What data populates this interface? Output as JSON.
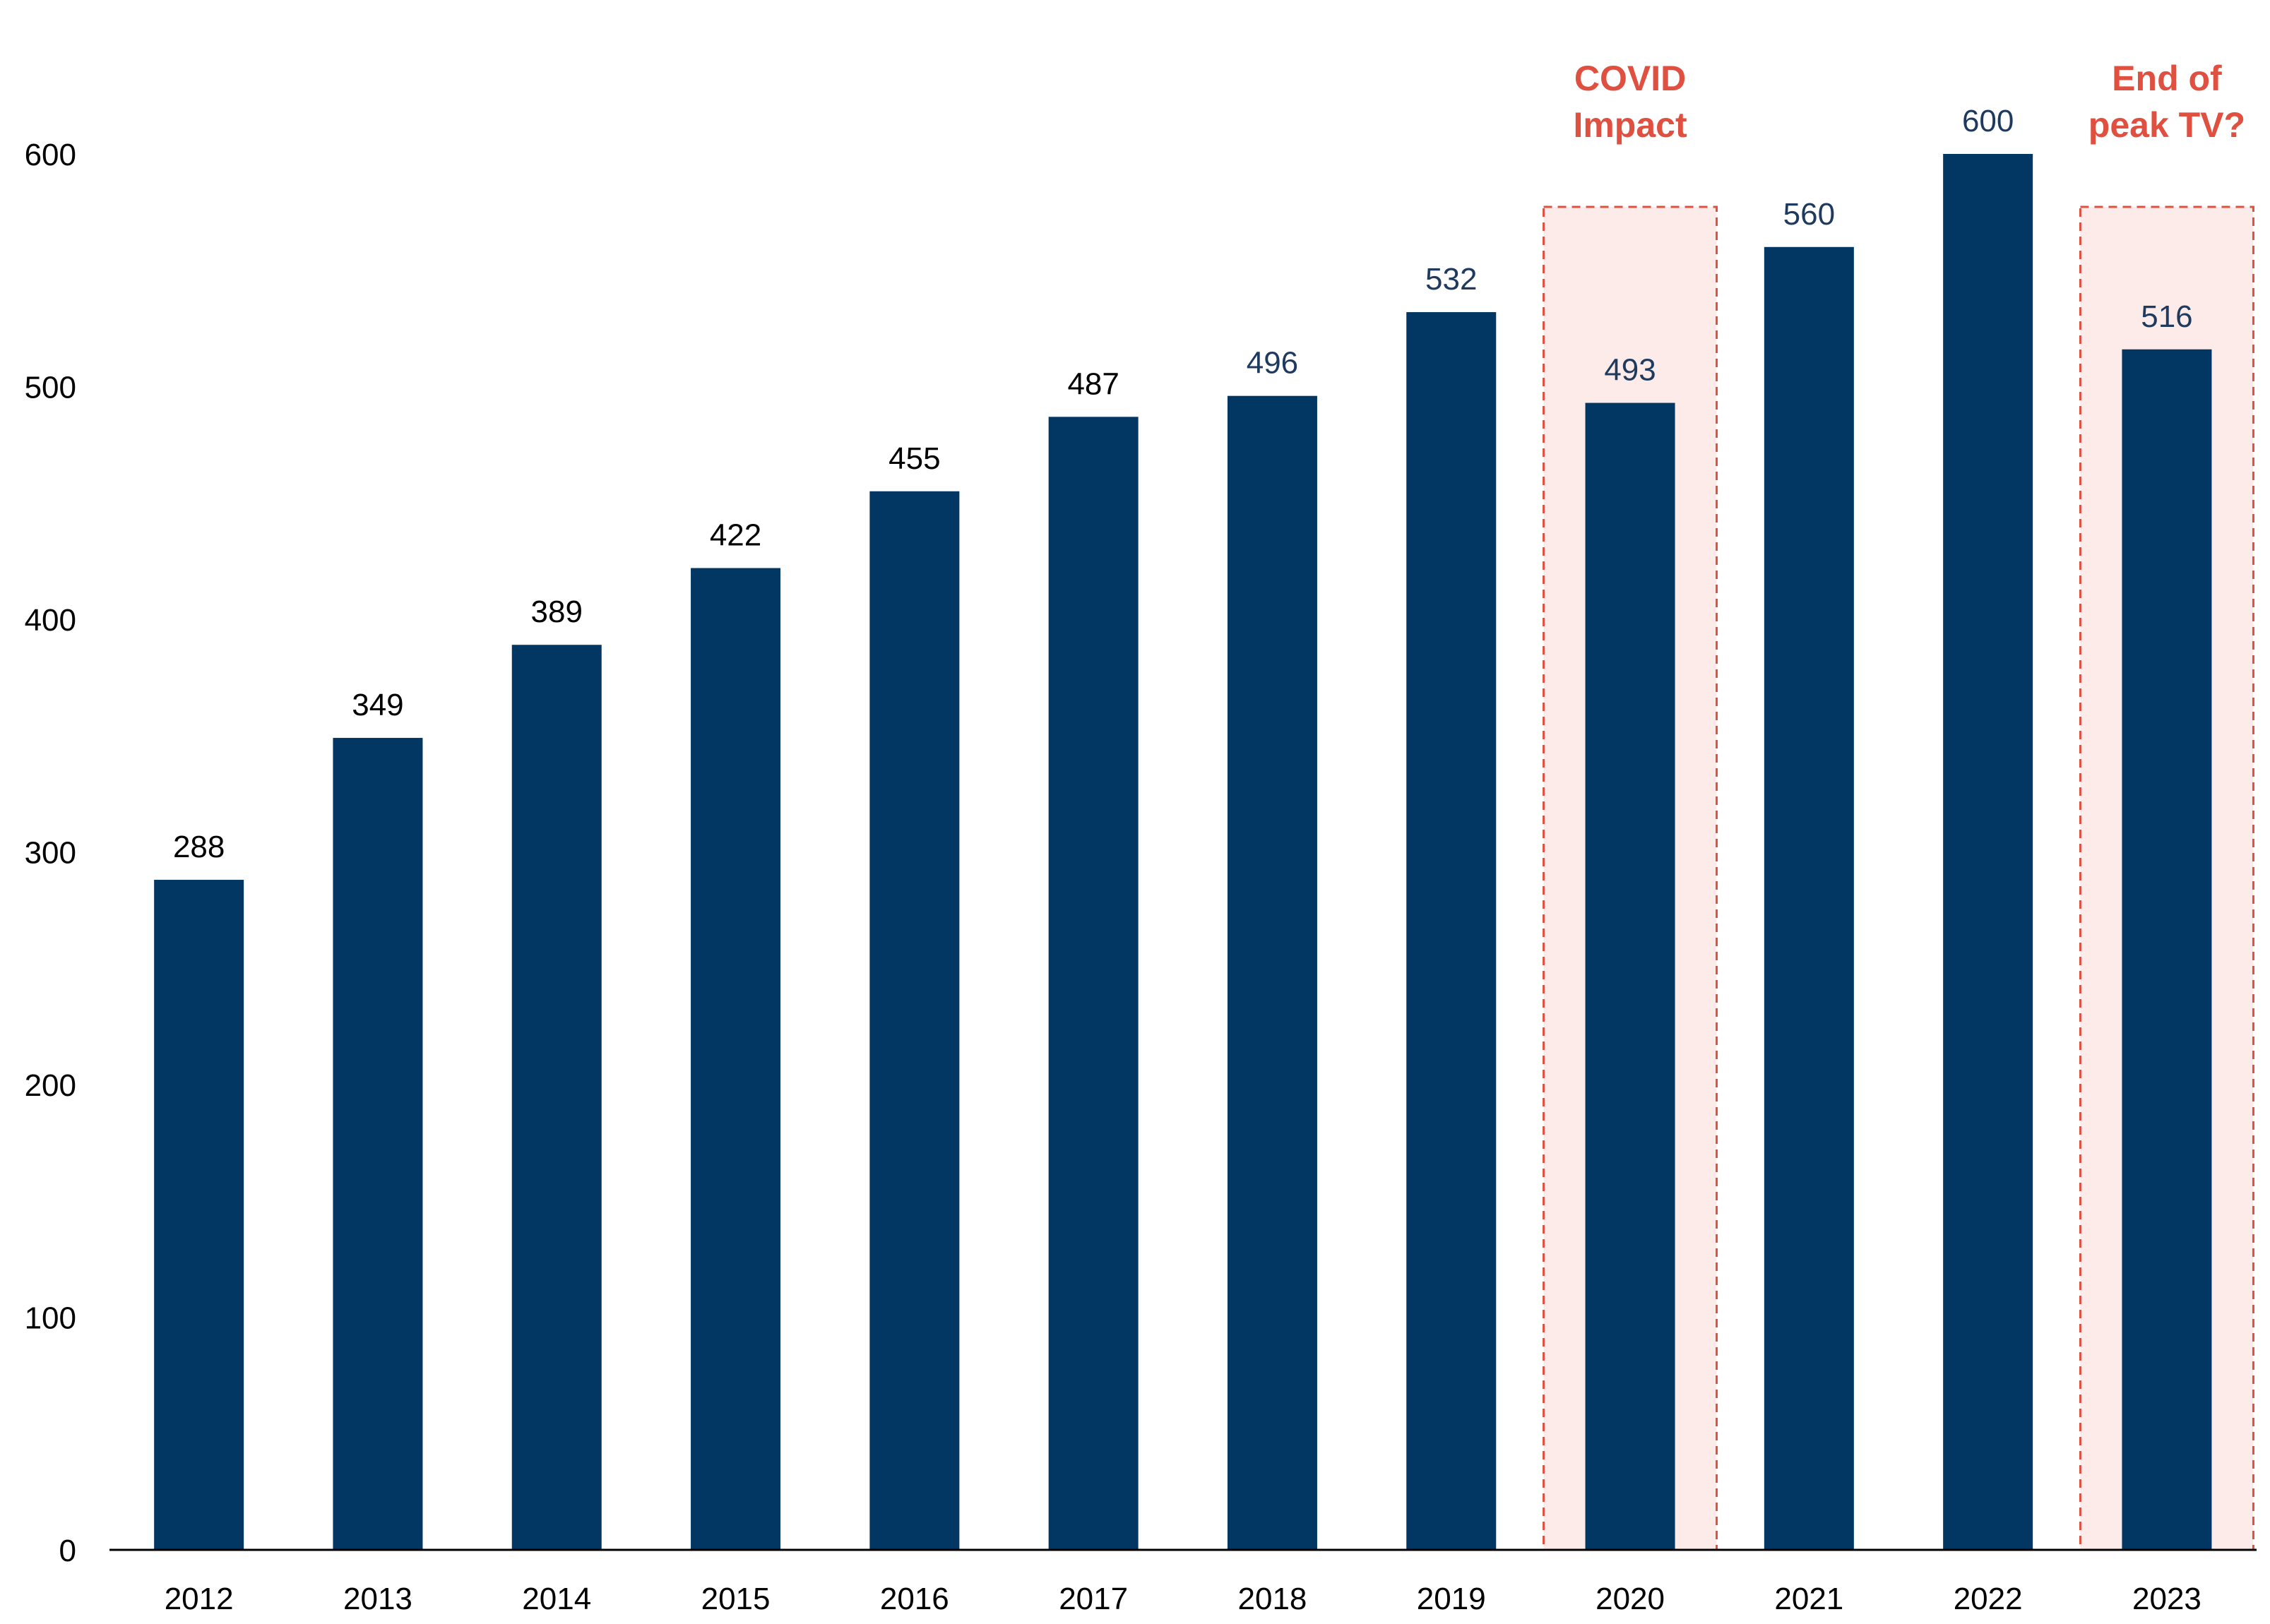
{
  "chart_data": {
    "type": "bar",
    "categories": [
      "2012",
      "2013",
      "2014",
      "2015",
      "2016",
      "2017",
      "2018",
      "2019",
      "2020",
      "2021",
      "2022",
      "2023"
    ],
    "values": [
      288,
      349,
      389,
      422,
      455,
      487,
      496,
      532,
      493,
      560,
      600,
      516
    ],
    "data_labels": [
      "288",
      "349",
      "389",
      "422",
      "455",
      "487",
      "496",
      "532",
      "493",
      "560",
      "600",
      "516"
    ],
    "title": "",
    "xlabel": "",
    "ylabel": "",
    "ylim": [
      0,
      600
    ],
    "yticks": [
      "0",
      "100",
      "200",
      "300",
      "400",
      "500",
      "600"
    ],
    "grid": false,
    "legend": "none",
    "colors": {
      "bar": "#023763",
      "label_dark": "#000000",
      "label_navy": "#1f3a5f",
      "annotation": "#e05040",
      "highlight_fill": "#fcebe8"
    },
    "annotations": [
      {
        "category": "2020",
        "lines": [
          "COVID",
          "Impact"
        ]
      },
      {
        "category": "2023",
        "lines": [
          "End of",
          "peak TV?"
        ]
      }
    ]
  }
}
